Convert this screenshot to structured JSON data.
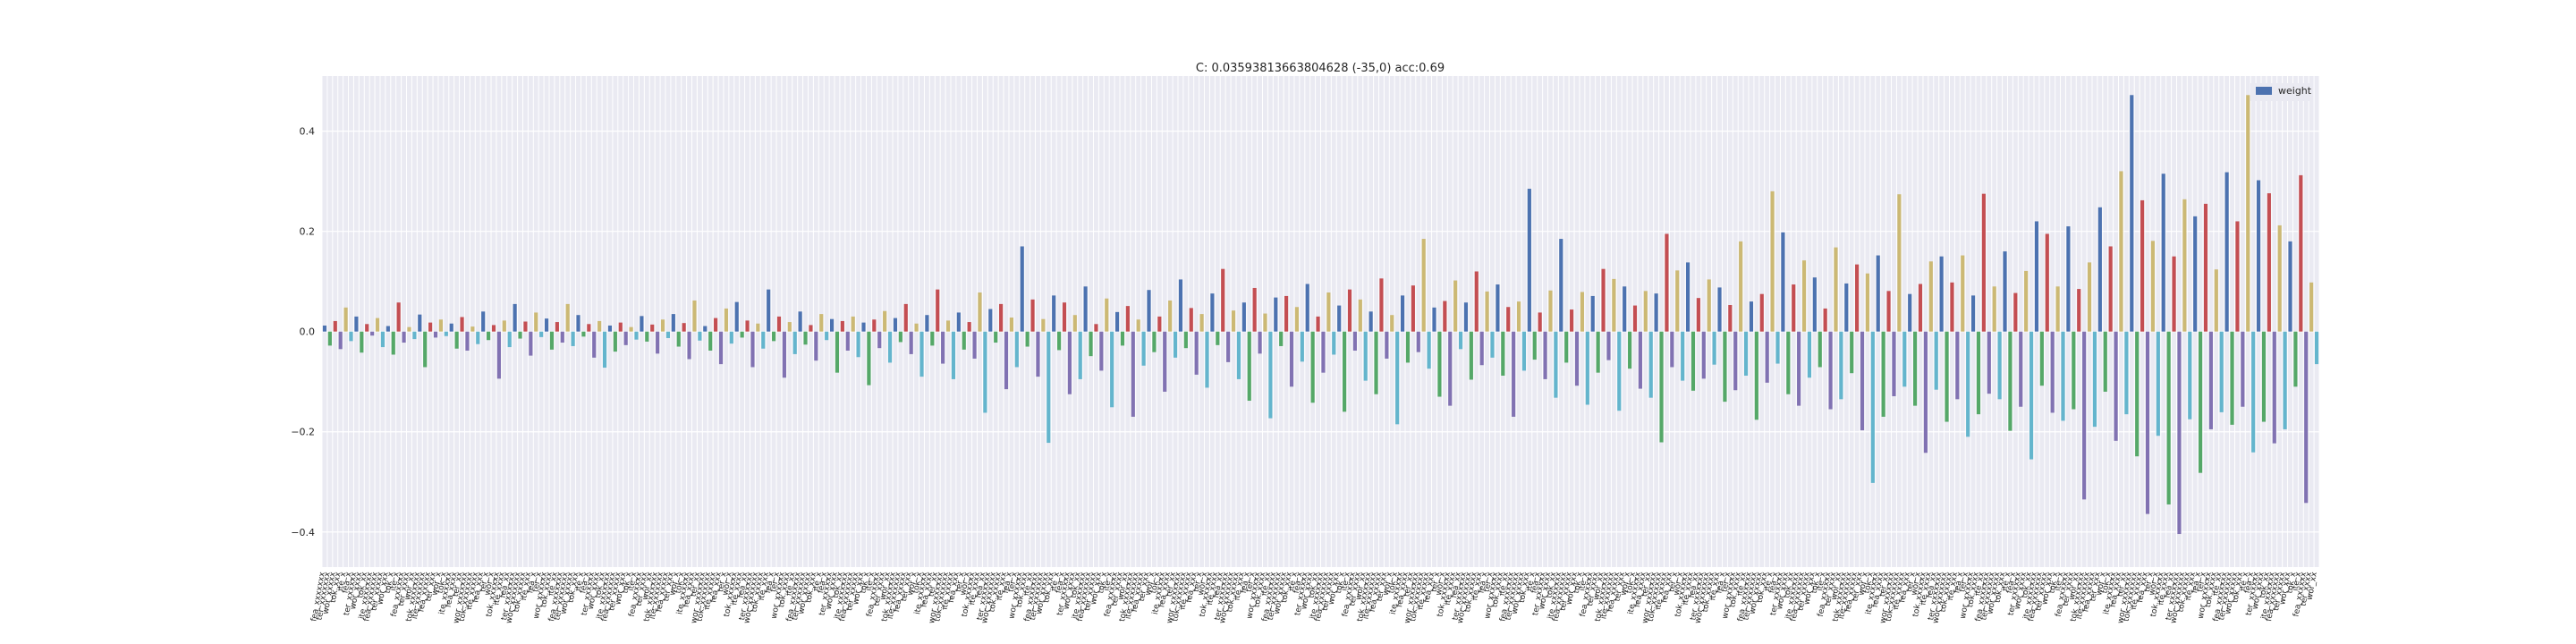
{
  "chart_data": {
    "type": "bar",
    "title": "C: 0.03593813663804628 (-35,0) acc:0.69",
    "xlabel": "",
    "ylabel": "",
    "ylim": [
      -0.47,
      0.51
    ],
    "yticks": [
      -0.4,
      -0.2,
      0.0,
      0.2,
      0.4
    ],
    "ytick_labels": [
      "−0.4",
      "−0.2",
      "0.0",
      "0.2",
      "0.4"
    ],
    "grid": true,
    "legend": {
      "placement": "top-right",
      "entries": [
        {
          "label": "weight",
          "color": "#4c72b0"
        }
      ]
    },
    "palette": [
      "#4c72b0",
      "#55a868",
      "#c44e52",
      "#8172b2",
      "#ccb974",
      "#64b5cd"
    ],
    "series": [
      {
        "name": "weight",
        "values": [
          0.012,
          -0.028,
          0.021,
          -0.035,
          0.048,
          -0.019,
          0.03,
          -0.042,
          0.015,
          -0.008,
          0.027,
          -0.031,
          0.011,
          -0.046,
          0.058,
          -0.022,
          0.009,
          -0.015,
          0.034,
          -0.071,
          0.018,
          -0.012,
          0.024,
          -0.009,
          0.016,
          -0.034,
          0.029,
          -0.038,
          0.01,
          -0.025,
          0.04,
          -0.017,
          0.013,
          -0.094,
          0.022,
          -0.031,
          0.055,
          -0.014,
          0.02,
          -0.048,
          0.038,
          -0.011,
          0.026,
          -0.036,
          0.019,
          -0.022,
          0.055,
          -0.029,
          0.033,
          -0.01,
          0.015,
          -0.052,
          0.021,
          -0.072,
          0.012,
          -0.04,
          0.018,
          -0.027,
          0.009,
          -0.016,
          0.031,
          -0.02,
          0.014,
          -0.044,
          0.024,
          -0.013,
          0.035,
          -0.03,
          0.017,
          -0.055,
          0.062,
          -0.018,
          0.011,
          -0.038,
          0.027,
          -0.065,
          0.046,
          -0.024,
          0.059,
          -0.012,
          0.022,
          -0.071,
          0.016,
          -0.034,
          0.084,
          -0.019,
          0.03,
          -0.092,
          0.019,
          -0.045,
          0.04,
          -0.026,
          0.013,
          -0.058,
          0.035,
          -0.017,
          0.025,
          -0.082,
          0.021,
          -0.038,
          0.03,
          -0.051,
          0.018,
          -0.107,
          0.024,
          -0.033,
          0.041,
          -0.062,
          0.027,
          -0.021,
          0.055,
          -0.045,
          0.016,
          -0.09,
          0.033,
          -0.028,
          0.084,
          -0.064,
          0.022,
          -0.095,
          0.038,
          -0.036,
          0.019,
          -0.054,
          0.078,
          -0.162,
          0.045,
          -0.022,
          0.055,
          -0.115,
          0.028,
          -0.071,
          0.17,
          -0.03,
          0.064,
          -0.09,
          0.025,
          -0.222,
          0.072,
          -0.037,
          0.058,
          -0.125,
          0.033,
          -0.095,
          0.09,
          -0.049,
          0.015,
          -0.078,
          0.066,
          -0.151,
          0.039,
          -0.028,
          0.051,
          -0.17,
          0.024,
          -0.068,
          0.083,
          -0.041,
          0.03,
          -0.12,
          0.062,
          -0.052,
          0.104,
          -0.033,
          0.047,
          -0.086,
          0.035,
          -0.112,
          0.076,
          -0.027,
          0.125,
          -0.061,
          0.042,
          -0.095,
          0.058,
          -0.138,
          0.087,
          -0.044,
          0.036,
          -0.173,
          0.068,
          -0.029,
          0.071,
          -0.11,
          0.049,
          -0.06,
          0.095,
          -0.142,
          0.03,
          -0.082,
          0.078,
          -0.046,
          0.052,
          -0.16,
          0.084,
          -0.038,
          0.064,
          -0.098,
          0.04,
          -0.125,
          0.106,
          -0.054,
          0.033,
          -0.185,
          0.072,
          -0.062,
          0.092,
          -0.041,
          0.185,
          -0.074,
          0.048,
          -0.13,
          0.061,
          -0.148,
          0.102,
          -0.035,
          0.058,
          -0.096,
          0.12,
          -0.067,
          0.08,
          -0.052,
          0.094,
          -0.088,
          0.049,
          -0.17,
          0.06,
          -0.078,
          0.285,
          -0.056,
          0.038,
          -0.095,
          0.082,
          -0.132,
          0.185,
          -0.062,
          0.044,
          -0.108,
          0.079,
          -0.146,
          0.071,
          -0.082,
          0.125,
          -0.057,
          0.105,
          -0.158,
          0.09,
          -0.074,
          0.052,
          -0.114,
          0.081,
          -0.132,
          0.076,
          -0.221,
          0.195,
          -0.071,
          0.122,
          -0.098,
          0.138,
          -0.118,
          0.067,
          -0.094,
          0.104,
          -0.066,
          0.088,
          -0.14,
          0.053,
          -0.117,
          0.18,
          -0.088,
          0.06,
          -0.176,
          0.075,
          -0.102,
          0.28,
          -0.064,
          0.198,
          -0.125,
          0.094,
          -0.148,
          0.142,
          -0.092,
          0.108,
          -0.071,
          0.046,
          -0.155,
          0.168,
          -0.135,
          0.096,
          -0.083,
          0.134,
          -0.197,
          0.116,
          -0.302,
          0.152,
          -0.17,
          0.081,
          -0.129,
          0.274,
          -0.11,
          0.075,
          -0.148,
          0.095,
          -0.242,
          0.14,
          -0.116,
          0.15,
          -0.18,
          0.098,
          -0.135,
          0.152,
          -0.21,
          0.072,
          -0.165,
          0.275,
          -0.124,
          0.09,
          -0.135,
          0.16,
          -0.198,
          0.077,
          -0.15,
          0.121,
          -0.255,
          0.22,
          -0.108,
          0.195,
          -0.162,
          0.09,
          -0.178,
          0.21,
          -0.155,
          0.085,
          -0.335,
          0.138,
          -0.19,
          0.248,
          -0.12,
          0.17,
          -0.218,
          0.32,
          -0.165,
          0.472,
          -0.249,
          0.262,
          -0.364,
          0.181,
          -0.208,
          0.315,
          -0.345,
          0.15,
          -0.404,
          0.264,
          -0.175,
          0.23,
          -0.282,
          0.255,
          -0.195,
          0.124,
          -0.161,
          0.318,
          -0.186,
          0.22,
          -0.15,
          0.472,
          -0.241,
          0.302,
          -0.18,
          0.276,
          -0.223,
          0.212,
          -0.195,
          0.18,
          -0.11,
          0.312,
          -0.342,
          0.098,
          -0.065
        ]
      }
    ],
    "categories_note": "x tick labels are dense rotated feature names, illegible in source image"
  }
}
